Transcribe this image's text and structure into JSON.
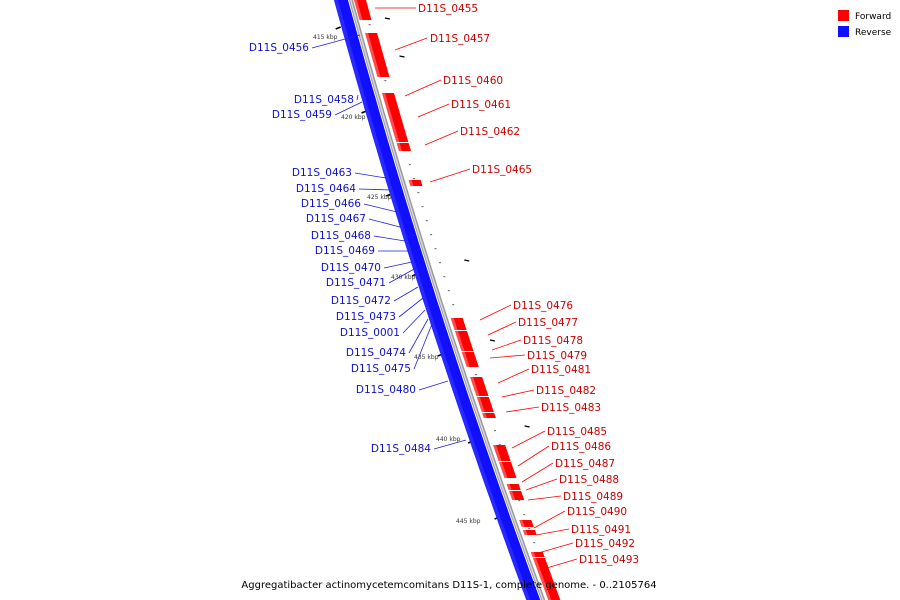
{
  "colors": {
    "forward": "#ff0000",
    "reverse": "#1010ff",
    "backbone": "#999999"
  },
  "legend": {
    "forward_label": "Forward",
    "reverse_label": "Reverse"
  },
  "caption": "Aggregatibacter actinomycetemcomitans D11S-1, complete genome. - 0..2105764",
  "kbp_ticks": [
    "415 kbp",
    "420 kbp",
    "425 kbp",
    "430 kbp",
    "435 kbp",
    "440 kbp",
    "445 kbp"
  ],
  "forward_genes": [
    "D11S_0455",
    "D11S_0457",
    "D11S_0460",
    "D11S_0461",
    "D11S_0462",
    "D11S_0465",
    "D11S_0476",
    "D11S_0477",
    "D11S_0478",
    "D11S_0479",
    "D11S_0481",
    "D11S_0482",
    "D11S_0483",
    "D11S_0485",
    "D11S_0486",
    "D11S_0487",
    "D11S_0488",
    "D11S_0489",
    "D11S_0490",
    "D11S_0491",
    "D11S_0492",
    "D11S_0493"
  ],
  "reverse_genes": [
    "D11S_0456",
    "D11S_0458",
    "D11S_0459",
    "D11S_0463",
    "D11S_0464",
    "D11S_0466",
    "D11S_0467",
    "D11S_0468",
    "D11S_0469",
    "D11S_0470",
    "D11S_0471",
    "D11S_0472",
    "D11S_0473",
    "D11S_0001",
    "D11S_0474",
    "D11S_0475",
    "D11S_0480",
    "D11S_0484"
  ]
}
